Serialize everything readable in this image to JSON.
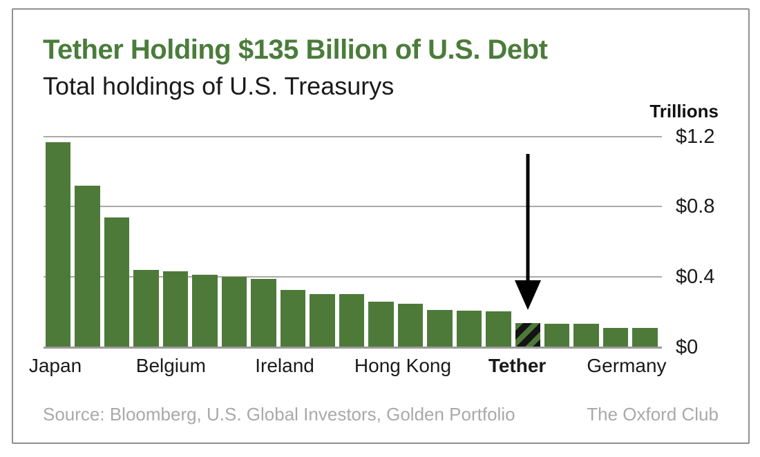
{
  "header": {
    "title": "Tether Holding $135 Billion of U.S. Debt",
    "subtitle": "Total holdings of U.S. Treasurys"
  },
  "chart_data": {
    "type": "bar",
    "title": "Tether Holding $135 Billion of U.S. Debt",
    "subtitle": "Total holdings of U.S. Treasurys",
    "unit_label": "Trillions",
    "ylabel": "Trillions of U.S. dollars",
    "ylim": [
      0,
      1.2
    ],
    "grid": true,
    "legend": "none",
    "y_ticks": [
      {
        "label": "$1.2",
        "value": 1.2
      },
      {
        "label": "$0.8",
        "value": 0.8
      },
      {
        "label": "$0.4",
        "value": 0.4
      },
      {
        "label": "$0",
        "value": 0
      }
    ],
    "bars": [
      {
        "value": 1.17
      },
      {
        "value": 0.92
      },
      {
        "value": 0.74
      },
      {
        "value": 0.44
      },
      {
        "value": 0.43
      },
      {
        "value": 0.41
      },
      {
        "value": 0.4
      },
      {
        "value": 0.385
      },
      {
        "value": 0.325
      },
      {
        "value": 0.3
      },
      {
        "value": 0.3
      },
      {
        "value": 0.255
      },
      {
        "value": 0.245
      },
      {
        "value": 0.21
      },
      {
        "value": 0.205
      },
      {
        "value": 0.2
      },
      {
        "value": 0.135,
        "highlight": true,
        "label": "Tether",
        "pattern": "black-diagonal-hatch"
      },
      {
        "value": 0.13
      },
      {
        "value": 0.13
      },
      {
        "value": 0.105
      },
      {
        "value": 0.105
      }
    ],
    "x_labels": [
      {
        "text": "Japan",
        "pos_pct": 1.9,
        "bold": false
      },
      {
        "text": "Belgium",
        "pos_pct": 20.6,
        "bold": false
      },
      {
        "text": "Ireland",
        "pos_pct": 39.0,
        "bold": false
      },
      {
        "text": "Hong Kong",
        "pos_pct": 58.1,
        "bold": false
      },
      {
        "text": "Tether",
        "pos_pct": 76.6,
        "bold": true
      },
      {
        "text": "Germany",
        "pos_pct": 94.3,
        "bold": false
      }
    ],
    "annotation": {
      "type": "down-arrow",
      "target": "Tether"
    }
  },
  "footer": {
    "source": "Source: Bloomberg, U.S. Global Investors, Golden Portfolio",
    "brand": "The Oxford Club"
  },
  "colors": {
    "bar_green": "#4d7a39",
    "title_green": "#4a7c3a",
    "hatch_black": "#141414",
    "grid_gray": "#a9a9a9",
    "axis_gray": "#999999",
    "text_gray": "#a9a9a9",
    "border_gray": "#8f8f8f"
  }
}
